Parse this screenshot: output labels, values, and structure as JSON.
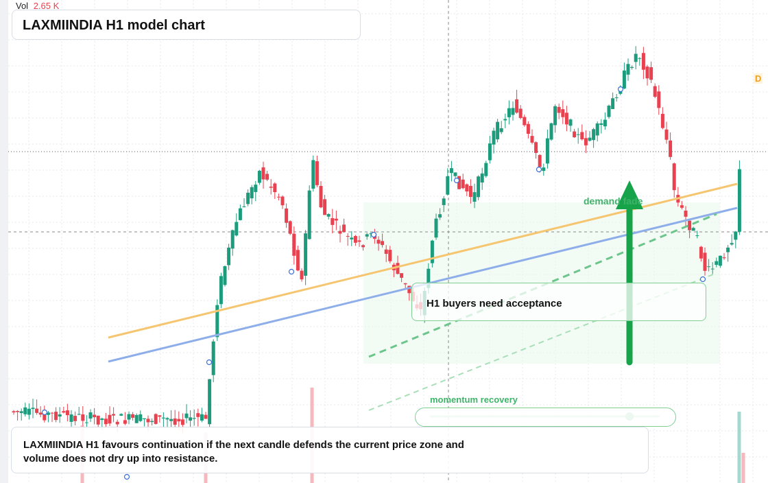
{
  "header": {
    "volume_label": "Vol",
    "volume_value": "2.65 K",
    "title": "LAXMIINDIA H1 model chart",
    "badge": "D"
  },
  "annotations": {
    "zone_label": "demand fade",
    "callout": "H1 buyers need acceptance",
    "momentum_label": "momentum recovery"
  },
  "footer": {
    "text": "LAXMIINDIA H1 favours continuation if the next candle defends the current price zone and volume does not dry up into resistance."
  }
}
